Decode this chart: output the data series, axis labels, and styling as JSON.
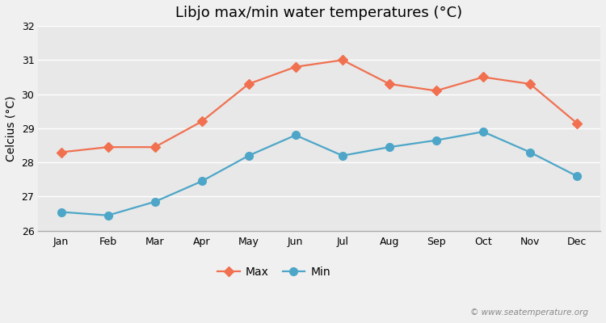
{
  "title": "Libjo max/min water temperatures (°C)",
  "ylabel": "Celcius (°C)",
  "months": [
    "Jan",
    "Feb",
    "Mar",
    "Apr",
    "May",
    "Jun",
    "Jul",
    "Aug",
    "Sep",
    "Oct",
    "Nov",
    "Dec"
  ],
  "max_temps": [
    28.3,
    28.45,
    28.45,
    29.2,
    30.3,
    30.8,
    31.0,
    30.3,
    30.1,
    30.5,
    30.3,
    29.15
  ],
  "min_temps": [
    26.55,
    26.45,
    26.85,
    27.45,
    28.2,
    28.8,
    28.2,
    28.45,
    28.65,
    28.9,
    28.3,
    27.6
  ],
  "max_color": "#f07050",
  "min_color": "#4da6c8",
  "bg_color": "#f0f0f0",
  "plot_bg_color": "#e8e8e8",
  "grid_color": "#ffffff",
  "ylim": [
    26,
    32
  ],
  "yticks": [
    26,
    27,
    28,
    29,
    30,
    31,
    32
  ],
  "legend_labels": [
    "Max",
    "Min"
  ],
  "watermark": "© www.seatemperature.org",
  "title_fontsize": 13,
  "label_fontsize": 10,
  "tick_fontsize": 9,
  "legend_fontsize": 10,
  "max_marker": "D",
  "min_marker": "o",
  "linewidth": 1.6,
  "max_markersize": 6,
  "min_markersize": 7
}
